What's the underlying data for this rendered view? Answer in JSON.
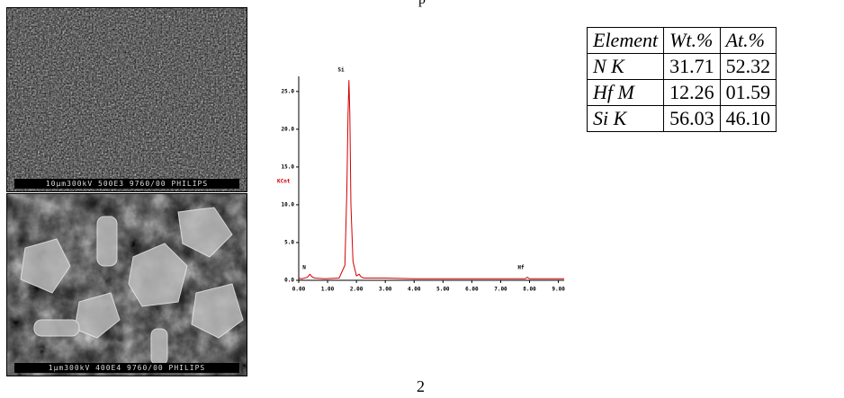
{
  "header": {
    "fragment": "p"
  },
  "images": [
    {
      "caption": "10μm300kV 500E3 9760/00 PHILIPS"
    },
    {
      "caption": "1μm300kV 400E4 9760/00 PHILIPS"
    }
  ],
  "chart_data": {
    "type": "line",
    "ylabel": "KCnt",
    "x": [
      0.0,
      0.1,
      0.3,
      0.39,
      0.45,
      0.55,
      0.9,
      1.4,
      1.6,
      1.67,
      1.71,
      1.74,
      1.77,
      1.81,
      1.88,
      2.0,
      2.1,
      2.15,
      2.25,
      3.0,
      4.0,
      5.0,
      6.0,
      7.0,
      7.85,
      7.92,
      8.0,
      9.0,
      9.2
    ],
    "values": [
      0.3,
      0.2,
      0.4,
      0.8,
      0.5,
      0.3,
      0.2,
      0.3,
      2.0,
      12.0,
      22.0,
      26.5,
      22.0,
      10.0,
      2.5,
      0.6,
      0.8,
      0.5,
      0.3,
      0.3,
      0.2,
      0.2,
      0.2,
      0.2,
      0.2,
      0.4,
      0.2,
      0.2,
      0.2
    ],
    "color": "#d40000",
    "annotations": [
      "N",
      "Si",
      "Hf"
    ],
    "xlim": [
      0,
      9.2
    ],
    "xticks": [
      {
        "value": 0,
        "label": "0.00"
      },
      {
        "value": 1,
        "label": "1.00"
      },
      {
        "value": 2,
        "label": "2.00"
      },
      {
        "value": 3,
        "label": "3.00"
      },
      {
        "value": 4,
        "label": "4.00"
      },
      {
        "value": 5,
        "label": "5.00"
      },
      {
        "value": 6,
        "label": "6.00"
      },
      {
        "value": 7,
        "label": "7.00"
      },
      {
        "value": 8,
        "label": "8.00"
      },
      {
        "value": 9,
        "label": "9.00"
      }
    ],
    "ylim": [
      0,
      27
    ],
    "yticks": [
      {
        "value": 0,
        "label": "0.0"
      },
      {
        "value": 5,
        "label": "5.0"
      },
      {
        "value": 10,
        "label": "10.0"
      },
      {
        "value": 15,
        "label": "15.0"
      },
      {
        "value": 20,
        "label": "20.0"
      },
      {
        "value": 25,
        "label": "25.0"
      }
    ]
  },
  "table": {
    "header": [
      "Element",
      "Wt.%",
      "At.%"
    ],
    "rows": [
      [
        "N K",
        "31.71",
        "52.32"
      ],
      [
        "Hf M",
        "12.26",
        "01.59"
      ],
      [
        "Si K",
        "56.03",
        "46.10"
      ]
    ]
  },
  "footer": {
    "page": "2"
  }
}
